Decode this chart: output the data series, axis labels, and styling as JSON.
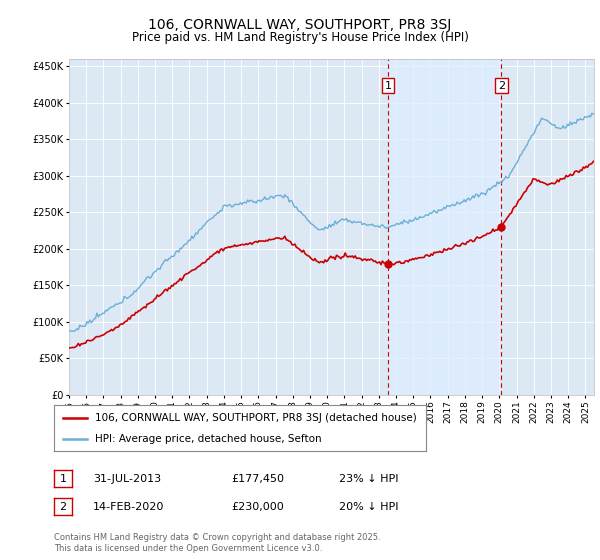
{
  "title1": "106, CORNWALL WAY, SOUTHPORT, PR8 3SJ",
  "title2": "Price paid vs. HM Land Registry's House Price Index (HPI)",
  "legend_line1": "106, CORNWALL WAY, SOUTHPORT, PR8 3SJ (detached house)",
  "legend_line2": "HPI: Average price, detached house, Sefton",
  "annotation1_date": "31-JUL-2013",
  "annotation1_price": "£177,450",
  "annotation1_hpi": "23% ↓ HPI",
  "annotation2_date": "14-FEB-2020",
  "annotation2_price": "£230,000",
  "annotation2_hpi": "20% ↓ HPI",
  "footer": "Contains HM Land Registry data © Crown copyright and database right 2025.\nThis data is licensed under the Open Government Licence v3.0.",
  "hpi_color": "#6baed6",
  "price_color": "#cc0000",
  "annotation_color": "#cc0000",
  "vline_color": "#cc0000",
  "highlight_color": "#ddeeff",
  "ylim": [
    0,
    460000
  ],
  "yticks": [
    0,
    50000,
    100000,
    150000,
    200000,
    250000,
    300000,
    350000,
    400000,
    450000
  ],
  "background_color": "#dce9f5",
  "t1": 2013.54,
  "t2": 2020.12,
  "t1_price": 177450,
  "t2_price": 230000
}
